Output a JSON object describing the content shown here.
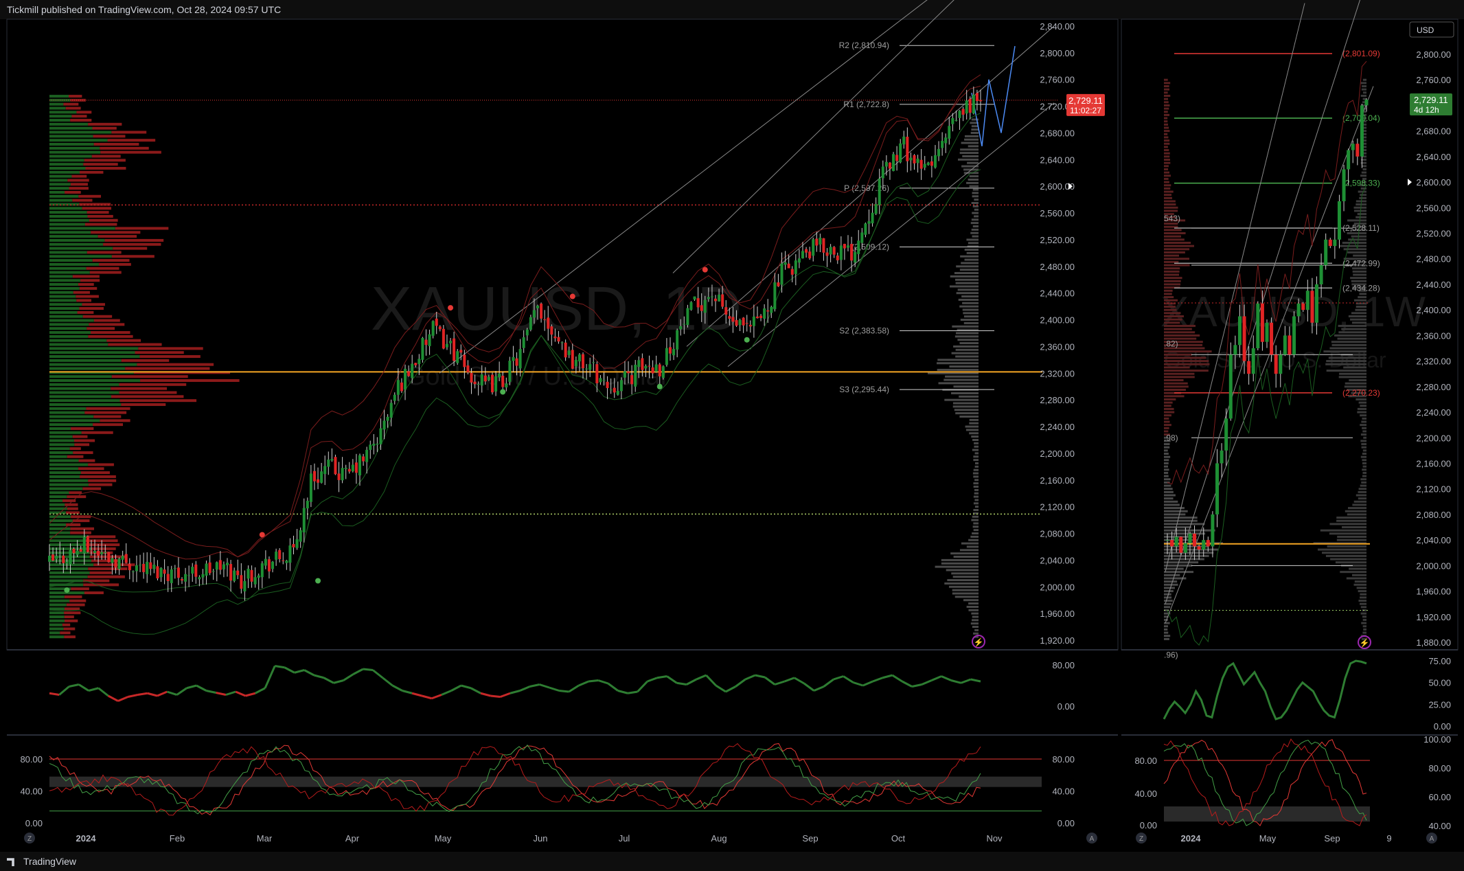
{
  "header": {
    "attribution": "Tickmill published on TradingView.com, Oct 28, 2024 09:57 UTC"
  },
  "footer": {
    "brand": "TradingView"
  },
  "colors": {
    "up": "#2e7d32",
    "down": "#e53935",
    "bg": "#000000",
    "poc": "#f5a623",
    "axis_text": "#b2b5be"
  },
  "icons": [
    "zoom-z-icon",
    "auto-a-icon",
    "lightning-icon",
    "tradingview-logo-icon"
  ],
  "chart_data": [
    {
      "type": "candlestick",
      "symbol_watermark": "XAUUSD, 1D",
      "watermark_sub": "Gold Spot / U.S. Dollar",
      "ylim": [
        1910,
        2850
      ],
      "y_ticks": [
        "2,840.00",
        "2,800.00",
        "2,760.00",
        "2,720.00",
        "2,680.00",
        "2,640.00",
        "2,600.00",
        "2,560.00",
        "2,520.00",
        "2,480.00",
        "2,440.00",
        "2,400.00",
        "2,360.00",
        "2,320.00",
        "2,280.00",
        "2,240.00",
        "2,200.00",
        "2,160.00",
        "2,120.00",
        "2,080.00",
        "2,040.00",
        "2,000.00",
        "1,960.00",
        "1,920.00"
      ],
      "x_ticks": [
        "2024",
        "Feb",
        "Mar",
        "Apr",
        "May",
        "Jun",
        "Jul",
        "Aug",
        "Sep",
        "Oct",
        "Nov"
      ],
      "last_price": "2,729.11",
      "countdown": "11:02:27",
      "pivots": [
        {
          "label": "R2 (2,810.94)",
          "value": 2810.94
        },
        {
          "label": "R1 (2,722.8)",
          "value": 2722.8
        },
        {
          "label": "P (2,597.26)",
          "value": 2597.26
        },
        {
          "label": "(2,509.12)",
          "value": 2509.12
        },
        {
          "label": "S2 (2,383.58)",
          "value": 2383.58
        },
        {
          "label": "S3 (2,295.44)",
          "value": 2295.44
        }
      ],
      "poc_level": 2322,
      "dotted_levels": [
        2572,
        2109
      ],
      "close_path": [
        [
          0,
          2035
        ],
        [
          10,
          2060
        ],
        [
          20,
          2040
        ],
        [
          30,
          2025
        ],
        [
          40,
          2020
        ],
        [
          50,
          2030
        ],
        [
          55,
          2010
        ],
        [
          60,
          2030
        ],
        [
          70,
          2050
        ],
        [
          75,
          2160
        ],
        [
          80,
          2180
        ],
        [
          85,
          2165
        ],
        [
          90,
          2190
        ],
        [
          95,
          2230
        ],
        [
          100,
          2300
        ],
        [
          105,
          2340
        ],
        [
          110,
          2385
        ],
        [
          115,
          2360
        ],
        [
          120,
          2320
        ],
        [
          125,
          2300
        ],
        [
          130,
          2310
        ],
        [
          135,
          2350
        ],
        [
          140,
          2420
        ],
        [
          145,
          2380
        ],
        [
          150,
          2340
        ],
        [
          155,
          2330
        ],
        [
          160,
          2300
        ],
        [
          165,
          2310
        ],
        [
          170,
          2330
        ],
        [
          175,
          2330
        ],
        [
          180,
          2380
        ],
        [
          185,
          2420
        ],
        [
          190,
          2440
        ],
        [
          195,
          2400
        ],
        [
          200,
          2380
        ],
        [
          205,
          2410
        ],
        [
          210,
          2470
        ],
        [
          215,
          2490
        ],
        [
          220,
          2510
        ],
        [
          225,
          2505
        ],
        [
          230,
          2500
        ],
        [
          235,
          2560
        ],
        [
          240,
          2630
        ],
        [
          245,
          2660
        ],
        [
          250,
          2620
        ],
        [
          255,
          2650
        ],
        [
          260,
          2700
        ],
        [
          265,
          2730
        ]
      ],
      "day_count": 268
    },
    {
      "type": "line",
      "name": "momentum oscillator 1D",
      "y_ticks": [
        "80.00",
        "0.00"
      ],
      "values": [
        25,
        22,
        38,
        42,
        30,
        35,
        20,
        10,
        18,
        22,
        25,
        20,
        28,
        22,
        35,
        40,
        30,
        26,
        22,
        28,
        20,
        25,
        35,
        78,
        75,
        65,
        70,
        60,
        55,
        45,
        50,
        62,
        72,
        70,
        55,
        40,
        30,
        25,
        20,
        15,
        22,
        30,
        40,
        35,
        25,
        20,
        18,
        25,
        30,
        38,
        42,
        36,
        30,
        28,
        40,
        48,
        50,
        44,
        30,
        25,
        28,
        48,
        55,
        58,
        45,
        42,
        52,
        60,
        40,
        28,
        38,
        52,
        60,
        56,
        42,
        48,
        55,
        44,
        30,
        38,
        52,
        58,
        46,
        40,
        48,
        55,
        60,
        48,
        38,
        42,
        50,
        58,
        50,
        45,
        52,
        48
      ]
    },
    {
      "type": "line",
      "name": "stochastic 1D",
      "y_ticks": [
        "80.00",
        "40.00",
        "0.00"
      ]
    },
    {
      "type": "candlestick",
      "symbol_watermark": "XAUUSD, 1W",
      "watermark_sub": "Gold Spot / U.S. Dollar",
      "ylim": [
        1840,
        2860
      ],
      "y_ticks": [
        "2,800.00",
        "2,760.00",
        "2,720.00",
        "2,680.00",
        "2,640.00",
        "2,600.00",
        "2,560.00",
        "2,520.00",
        "2,480.00",
        "2,440.00",
        "2,400.00",
        "2,360.00",
        "2,320.00",
        "2,280.00",
        "2,240.00",
        "2,200.00",
        "2,160.00",
        "2,120.00",
        "2,080.00",
        "2,040.00",
        "2,000.00",
        "1,960.00",
        "1,920.00",
        "1,880.00"
      ],
      "x_ticks": [
        "2024",
        "May",
        "Sep",
        "9"
      ],
      "currency": "USD",
      "last_price": "2,729.11",
      "countdown": "4d 12h",
      "levels": [
        {
          "label": "(2,801.09)",
          "value": 2801.09,
          "color": "#e53935"
        },
        {
          "label": "(2,700.04)",
          "value": 2700.04,
          "color": "#4caf50"
        },
        {
          "label": "(2,598.33)",
          "value": 2598.33,
          "color": "#4caf50"
        },
        {
          "label": "(2,528.11)",
          "value": 2528.11,
          "color": "#9e9e9e"
        },
        {
          "label": "(2,472.99)",
          "value": 2472.99,
          "color": "#9e9e9e"
        },
        {
          "label": "(2,434.28)",
          "value": 2434.28,
          "color": "#9e9e9e"
        },
        {
          "label": "(2,270.23)",
          "value": 2270.23,
          "color": "#e53935"
        }
      ],
      "left_labels": [
        {
          "label": "543)",
          "value": 2543
        },
        {
          "label": ".82)",
          "value": 2347
        },
        {
          "label": ".98)",
          "value": 2200
        },
        {
          "label": ".96)",
          "value": 1860
        }
      ],
      "poc_level": 2034,
      "weekly_closes": [
        2040,
        2030,
        2045,
        2020,
        2035,
        2050,
        2030,
        2025,
        2040,
        2030,
        2080,
        2160,
        2180,
        2230,
        2330,
        2345,
        2390,
        2320,
        2300,
        2340,
        2410,
        2350,
        2380,
        2330,
        2300,
        2330,
        2360,
        2330,
        2390,
        2410,
        2400,
        2430,
        2380,
        2440,
        2470,
        2510,
        2500,
        2510,
        2570,
        2620,
        2650,
        2660,
        2640,
        2720,
        2729
      ]
    },
    {
      "type": "line",
      "name": "oscillator 1W",
      "y_ticks": [
        "75.00",
        "50.00",
        "25.00",
        "0.00"
      ]
    },
    {
      "type": "line",
      "name": "stochastic 1W",
      "y_ticks": [
        "100.00",
        "80.00",
        "60.00",
        "40.00"
      ],
      "left_ticks": [
        "80.00",
        "40.00",
        "0.00"
      ]
    }
  ]
}
